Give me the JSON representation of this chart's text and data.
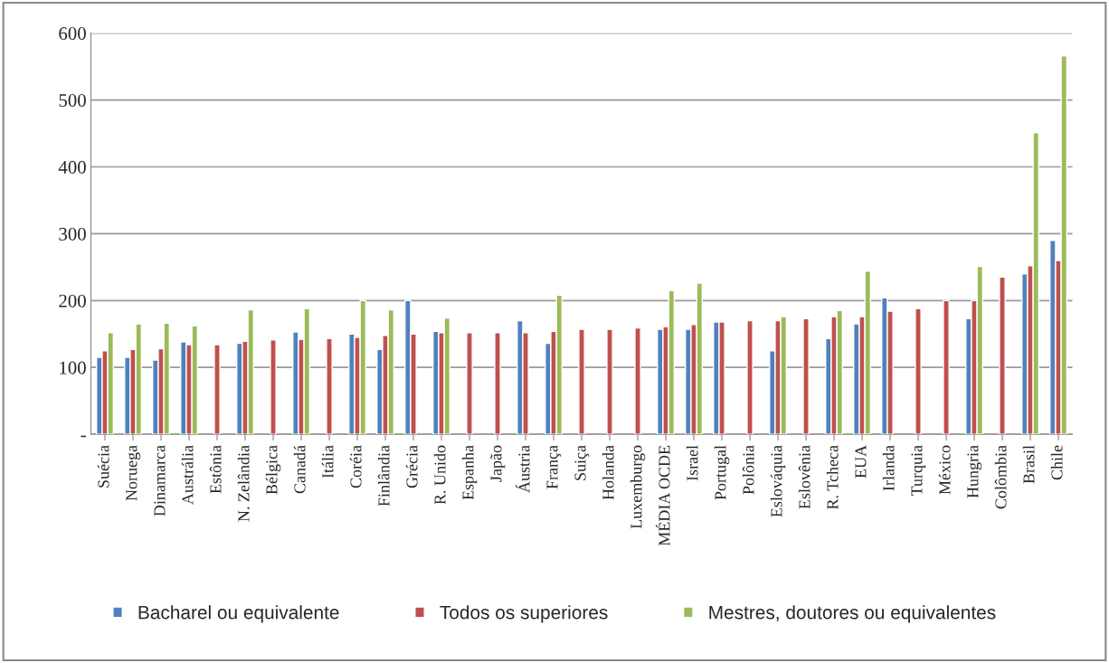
{
  "chart_data": {
    "type": "bar",
    "categories": [
      "Suécia",
      "Noruega",
      "Dinamarca",
      "Austrália",
      "Estônia",
      "N. Zelândia",
      "Bélgica",
      "Canadá",
      "Itália",
      "Coréia",
      "Finlândia",
      "Grécia",
      "R. Unido",
      "Espanha",
      "Japão",
      "Áustria",
      "França",
      "Suiça",
      "Holanda",
      "Luxemburgo",
      "MÉDIA OCDE",
      "Israel",
      "Portugal",
      "Polônia",
      "Eslováquia",
      "Eslovênia",
      "R. Tcheca",
      "EUA",
      "Irlanda",
      "Turquia",
      "México",
      "Hungria",
      "Colômbia",
      "Brasil",
      "Chile"
    ],
    "series": [
      {
        "name": "Bacharel ou equivalente",
        "color": "#4f81bd",
        "values": [
          115,
          115,
          111,
          138,
          null,
          136,
          null,
          153,
          null,
          150,
          127,
          200,
          154,
          null,
          null,
          170,
          136,
          null,
          null,
          null,
          157,
          157,
          168,
          null,
          125,
          null,
          143,
          165,
          204,
          null,
          null,
          173,
          null,
          240,
          290
        ]
      },
      {
        "name": "Todos os superiores",
        "color": "#c0504d",
        "values": [
          125,
          127,
          128,
          134,
          134,
          139,
          141,
          142,
          143,
          145,
          148,
          150,
          152,
          152,
          152,
          152,
          154,
          157,
          157,
          159,
          161,
          164,
          168,
          170,
          170,
          173,
          176,
          176,
          184,
          188,
          200,
          200,
          235,
          252,
          260
        ]
      },
      {
        "name": "Mestres, doutores ou equivalentes",
        "color": "#9bbb59",
        "values": [
          152,
          165,
          166,
          162,
          null,
          186,
          null,
          188,
          null,
          200,
          186,
          null,
          174,
          null,
          null,
          null,
          208,
          null,
          null,
          null,
          215,
          226,
          null,
          null,
          176,
          null,
          185,
          244,
          null,
          null,
          null,
          251,
          null,
          451,
          566
        ]
      }
    ],
    "ylim": [
      0,
      600
    ],
    "yticks": [
      {
        "value": 0,
        "label": "-"
      },
      100,
      200,
      300,
      400,
      500,
      600
    ],
    "grid": "y",
    "legend": "bottom"
  }
}
